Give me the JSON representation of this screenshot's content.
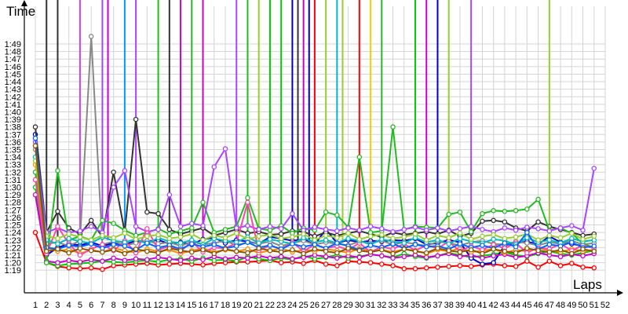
{
  "chart_data": {
    "type": "line",
    "title": "",
    "ylabel": "Time",
    "xlabel": "Laps",
    "y_unit": "seconds",
    "x_ticks": [
      1,
      2,
      3,
      4,
      5,
      6,
      7,
      8,
      9,
      10,
      11,
      12,
      13,
      14,
      15,
      16,
      17,
      18,
      19,
      20,
      21,
      22,
      23,
      24,
      25,
      26,
      27,
      28,
      29,
      30,
      31,
      32,
      33,
      34,
      35,
      36,
      37,
      38,
      39,
      40,
      41,
      42,
      43,
      44,
      45,
      46,
      47,
      48,
      49,
      50,
      51,
      52
    ],
    "y_ticks": [
      "1:19",
      "1:20",
      "1:21",
      "1:22",
      "1:23",
      "1:24",
      "1:25",
      "1:26",
      "1:27",
      "1:28",
      "1:29",
      "1:30",
      "1:31",
      "1:32",
      "1:33",
      "1:34",
      "1:35",
      "1:36",
      "1:37",
      "1:38",
      "1:39",
      "1:40",
      "1:41",
      "1:42",
      "1:43",
      "1:44",
      "1:45",
      "1:46",
      "1:47",
      "1:48",
      "1:49"
    ],
    "xlim": [
      1,
      52
    ],
    "ylim": [
      76,
      114
    ],
    "grid": true,
    "legend": "none",
    "series": [
      {
        "color": "#ff0000",
        "values": [
          84,
          80,
          79.5,
          79.3,
          79.2,
          79.3,
          79.1,
          79.6,
          79.7,
          79.8,
          79.9,
          79.7,
          79.8,
          79.9,
          79.8,
          79.7,
          79.9,
          80.0,
          80.1,
          80.1,
          80.2,
          80.3,
          80.0,
          80.1,
          79.9,
          80.3,
          79.8,
          79.6,
          80.2,
          80.1,
          80.0,
          79.8,
          79.6,
          79.2,
          79.2,
          79.3,
          79.4,
          79.5,
          79.6,
          79.5,
          79.7,
          79.8,
          79.6,
          79.5,
          80.2,
          79.4,
          80.2,
          79.6,
          79.9,
          79.4,
          79.3
        ]
      },
      {
        "color": "#00cc00",
        "values": [
          90,
          80,
          79.6,
          79.8,
          79.9,
          80.0,
          80.2,
          80.1,
          80.0,
          80.2,
          80.3,
          80.1,
          80.4,
          80.5,
          80.2,
          80.6,
          80.3,
          80.4,
          80.2,
          80.8,
          80.5,
          80.3,
          80.6,
          80.4,
          80.9,
          80.5,
          80.7,
          81.0,
          80.6,
          80.8,
          81.1,
          80.9,
          80.7,
          81.2,
          80.8,
          80.6,
          80.9,
          81.3,
          81.0,
          80.7,
          80.9,
          81.1,
          81.4,
          81.0,
          80.8,
          81.2,
          81.5,
          81.2,
          81.0,
          81.3,
          81.6
        ]
      },
      {
        "color": "#0000cc",
        "values": [
          97,
          81,
          82.0,
          82.5,
          82.3,
          82.7,
          82.2,
          82.6,
          82.4,
          82.9,
          82.8,
          83.0,
          82.5,
          82.7,
          82.4,
          83.1,
          83.3,
          82.6,
          83.0,
          82.8,
          82.5,
          83.4,
          83.2,
          82.9,
          83.1,
          82.4,
          84.4,
          82.6,
          83.0,
          82.7,
          82.9,
          82.8,
          83.0,
          82.9,
          83.2,
          82.4,
          82.6,
          83.0,
          82.7,
          80.6,
          79.8,
          80.0,
          82.3,
          82.6,
          82.8,
          82.4,
          83.5,
          82.7,
          82.5,
          82.2,
          82.0
        ]
      },
      {
        "color": "#cc00cc",
        "values": [
          89,
          80.2,
          80.0,
          80.3,
          80.1,
          80.4,
          80.2,
          80.6,
          80.3,
          80.5,
          80.4,
          80.7,
          80.5,
          80.3,
          80.6,
          80.4,
          80.8,
          80.5,
          80.7,
          80.6,
          80.9,
          80.6,
          80.8,
          80.5,
          80.7,
          81.0,
          80.8,
          80.6,
          80.9,
          80.7,
          81.1,
          80.9,
          80.6,
          80.8,
          81.0,
          80.7,
          80.9,
          81.2,
          80.8,
          81.0,
          80.6,
          80.9,
          81.1,
          80.7,
          80.9,
          81.3,
          81.0,
          80.8,
          81.1,
          80.9,
          81.2
        ]
      },
      {
        "color": "#ff8800",
        "values": [
          93,
          82,
          81.5,
          81.8,
          81.2,
          81.7,
          81.4,
          81.9,
          81.6,
          81.3,
          81.8,
          81.5,
          81.7,
          81.2,
          81.6,
          81.9,
          81.4,
          81.7,
          81.5,
          81.8,
          81.3,
          81.6,
          81.9,
          81.4,
          81.7,
          81.5,
          81.8,
          81.6,
          81.3,
          81.9,
          81.5,
          81.7,
          81.4,
          81.8,
          81.6,
          81.2,
          81.7,
          81.5,
          81.9,
          81.4,
          81.6,
          81.8,
          81.3,
          81.7,
          81.5,
          81.9,
          81.6,
          81.4,
          81.8,
          81.5,
          81.7
        ]
      },
      {
        "color": "#888888",
        "values": [
          95,
          82.5,
          82.7,
          82.2,
          82.9,
          110,
          82.4,
          82.8,
          82.3,
          82.6,
          82.9,
          82.5,
          82.7,
          82.2,
          82.8,
          82.4,
          82.6,
          82.9,
          82.3,
          82.7,
          82.5,
          82.8,
          82.2,
          82.6,
          82.9,
          82.4,
          82.7,
          82.5,
          82.3,
          82.8,
          82.6,
          82.9,
          82.4,
          82.7,
          82.5,
          82.2,
          82.8,
          82.6,
          82.3,
          82.7,
          82.9,
          82.5,
          82.4,
          82.8,
          82.6,
          82.3,
          82.7,
          82.5,
          82.9,
          82.4,
          82.6
        ]
      },
      {
        "color": "#333333",
        "values": [
          98,
          84,
          86.8,
          84.6,
          83.8,
          85.6,
          83.4,
          92.0,
          84.0,
          99.0,
          86.7,
          86.5,
          84.4,
          83.8,
          84.2,
          84.6,
          83.6,
          84.0,
          84.4,
          83.9,
          84.1,
          83.7,
          83.8,
          84.2,
          84.1,
          83.5,
          84.0,
          83.6,
          83.9,
          84.2,
          83.8,
          83.4,
          84.0,
          83.7,
          83.9,
          84.1,
          83.8,
          84.3,
          83.5,
          83.9,
          85.5,
          85.6,
          85.4,
          84.6,
          84.2,
          85.4,
          84.8,
          84.4,
          84.0,
          83.6,
          83.8
        ]
      },
      {
        "color": "#22bb22",
        "values": [
          92,
          80,
          92.2,
          83.0,
          83.5,
          83.0,
          85.6,
          85.2,
          84.3,
          83.6,
          84.0,
          84.5,
          83.8,
          84.2,
          84.6,
          88.0,
          84.0,
          84.4,
          84.8,
          88.6,
          84.5,
          84.3,
          84.9,
          83.9,
          84.6,
          84.3,
          86.7,
          86.3,
          84.7,
          94.0,
          84.0,
          84.2,
          98.0,
          84.4,
          84.8,
          84.7,
          84.6,
          86.4,
          86.7,
          84.1,
          86.5,
          86.9,
          86.8,
          86.9,
          87.1,
          88.4,
          84.3,
          84.6,
          83.9,
          82.5,
          82.0
        ]
      },
      {
        "color": "#aa44ff",
        "values": [
          96,
          84.0,
          84.6,
          84.0,
          84.2,
          84.8,
          84.0,
          90.0,
          92.2,
          84.8,
          84.1,
          84.4,
          89.0,
          84.8,
          85.2,
          84.9,
          92.7,
          95.1,
          84.6,
          84.9,
          84.4,
          84.8,
          84.5,
          86.5,
          84.3,
          84.7,
          84.4,
          84.2,
          84.6,
          84.3,
          84.8,
          84.5,
          84.1,
          84.4,
          84.7,
          84.3,
          84.6,
          84.2,
          84.5,
          84.8,
          84.4,
          84.1,
          84.6,
          84.3,
          84.7,
          84.5,
          84.2,
          84.6,
          84.9,
          84.3,
          92.5
        ]
      },
      {
        "color": "#ff44aa",
        "values": [
          91,
          81.2,
          84.8,
          82.5,
          81.0,
          81.8,
          82.4,
          81.6,
          82.9,
          81.3,
          84.5,
          81.7,
          82.2,
          81.5,
          82.8,
          81.4,
          82.0,
          81.9,
          82.6,
          88.0,
          81.6,
          82.3,
          81.8,
          82.7,
          81.5,
          82.4,
          81.9,
          82.2,
          81.7,
          82.6,
          81.4,
          82.1,
          81.8,
          82.5,
          81.6,
          82.3,
          81.9,
          82.8,
          81.5,
          82.2,
          81.7,
          82.4,
          81.9,
          82.6,
          81.3,
          82.0,
          81.8,
          82.5,
          81.6,
          82.3,
          81.9
        ]
      },
      {
        "color": "#00bbbb",
        "values": [
          94,
          83.0,
          82.5,
          83.2,
          82.8,
          82.6,
          83.4,
          82.9,
          82.7,
          83.1,
          82.5,
          83.3,
          82.8,
          82.6,
          83.0,
          82.4,
          83.2,
          82.9,
          82.7,
          83.4,
          82.6,
          83.1,
          82.8,
          82.5,
          83.3,
          82.7,
          83.0,
          82.6,
          83.2,
          82.9,
          82.4,
          83.1,
          82.8,
          82.6,
          83.3,
          82.7,
          83.0,
          82.5,
          83.2,
          82.8,
          82.6,
          83.1,
          82.9,
          82.4,
          83.3,
          82.7,
          83.0,
          82.6,
          83.2,
          82.8,
          83.0
        ]
      },
      {
        "color": "#99cc33",
        "values": [
          93.5,
          83.5,
          83.2,
          83.8,
          83.4,
          83.0,
          83.6,
          83.3,
          83.9,
          83.1,
          83.5,
          83.7,
          83.2,
          83.4,
          83.8,
          83.0,
          83.6,
          83.3,
          83.9,
          83.1,
          83.5,
          83.7,
          83.2,
          83.4,
          83.8,
          83.0,
          83.6,
          83.3,
          83.9,
          83.1,
          83.5,
          83.7,
          83.2,
          83.4,
          83.8,
          83.0,
          83.6,
          83.3,
          83.9,
          83.1,
          83.5,
          83.7,
          83.2,
          83.4,
          83.8,
          83.0,
          83.6,
          83.3,
          83.9,
          83.1,
          83.5
        ]
      },
      {
        "color": "#0066ff",
        "values": [
          96.5,
          82.0,
          81.8,
          82.3,
          82.1,
          82.5,
          81.9,
          82.4,
          82.2,
          81.7,
          82.6,
          82.0,
          82.3,
          81.8,
          82.5,
          82.1,
          82.4,
          81.9,
          82.2,
          82.7,
          82.0,
          82.3,
          81.8,
          82.5,
          82.1,
          82.4,
          81.9,
          82.6,
          82.2,
          81.7,
          82.3,
          82.0,
          82.5,
          81.9,
          82.4,
          82.1,
          82.2,
          81.8,
          82.5,
          82.0,
          82.3,
          81.9,
          82.6,
          82.1,
          84.0,
          81.8,
          82.4,
          82.2,
          82.7,
          82.0,
          82.2
        ]
      },
      {
        "color": "#885500",
        "values": [
          95.5,
          81.5,
          81.8,
          81.3,
          81.9,
          81.6,
          81.4,
          81.7,
          81.2,
          81.8,
          81.5,
          81.3,
          81.9,
          81.6,
          81.4,
          81.7,
          81.2,
          81.8,
          81.5,
          81.3,
          81.9,
          81.6,
          81.4,
          81.7,
          81.2,
          81.8,
          81.5,
          81.3,
          81.9,
          81.6,
          81.4,
          81.7,
          81.2,
          81.8,
          81.5,
          81.3,
          81.9,
          81.6,
          81.4,
          81.7,
          81.2,
          81.8,
          81.5,
          81.3,
          81.9,
          81.6,
          81.4,
          81.7,
          81.2,
          81.8,
          81.5
        ]
      }
    ],
    "spikes": [
      {
        "color": "#333333",
        "x": 2
      },
      {
        "color": "#333333",
        "x": 3
      },
      {
        "color": "#cc44ff",
        "x": 5
      },
      {
        "color": "#aa44ff",
        "x": 7
      },
      {
        "color": "#cc00cc",
        "x": 7.5
      },
      {
        "color": "#0099ff",
        "x": 9
      },
      {
        "color": "#aa44ff",
        "x": 10
      },
      {
        "color": "#22bb22",
        "x": 12
      },
      {
        "color": "#333333",
        "x": 13
      },
      {
        "color": "#cc00cc",
        "x": 14
      },
      {
        "color": "#22bb22",
        "x": 15
      },
      {
        "color": "#cc00cc",
        "x": 16
      },
      {
        "color": "#aa44ff",
        "x": 19
      },
      {
        "color": "#22bb22",
        "x": 20
      },
      {
        "color": "#99cc33",
        "x": 21
      },
      {
        "color": "#00cc00",
        "x": 22
      },
      {
        "color": "#00cc00",
        "x": 23
      },
      {
        "color": "#0000cc",
        "x": 24
      },
      {
        "color": "#333333",
        "x": 24.5
      },
      {
        "color": "#cc00cc",
        "x": 25
      },
      {
        "color": "#0000cc",
        "x": 25.5
      },
      {
        "color": "#ff0000",
        "x": 26
      },
      {
        "color": "#99cc33",
        "x": 27
      },
      {
        "color": "#00bbbb",
        "x": 28
      },
      {
        "color": "#99cc33",
        "x": 28.5
      },
      {
        "color": "#ff0000",
        "x": 30
      },
      {
        "color": "#ffcc00",
        "x": 31
      },
      {
        "color": "#22bb22",
        "x": 32
      },
      {
        "color": "#00cc00",
        "x": 35
      },
      {
        "color": "#cc00cc",
        "x": 36
      },
      {
        "color": "#0000cc",
        "x": 37
      },
      {
        "color": "#99cc33",
        "x": 38
      },
      {
        "color": "#aa44ff",
        "x": 40
      },
      {
        "color": "#99cc33",
        "x": 47
      }
    ]
  }
}
